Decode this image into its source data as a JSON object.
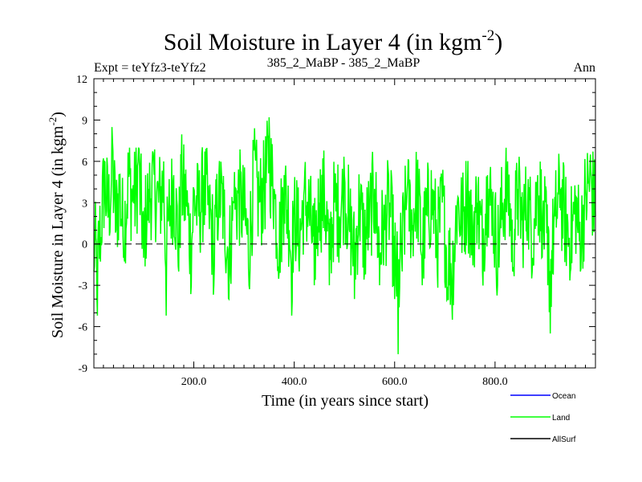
{
  "chart_data": {
    "type": "line",
    "title": "Soil Moisture in Layer 4 (in kgm",
    "title_sup": "-2",
    "title_end": ")",
    "subtitle_left": "Expt = teYfz3-teYfz2",
    "subtitle_center": "385_2_MaBP - 385_2_MaBP",
    "subtitle_right": "Ann",
    "xlabel": "Time (in years since start)",
    "ylabel": "Soil Moisture in Layer 4 (in kgm",
    "ylabel_sup": "-2",
    "ylabel_end": ")",
    "xlim": [
      1,
      1000
    ],
    "ylim": [
      -9,
      12
    ],
    "x_ticks": [
      200,
      400,
      600,
      800
    ],
    "x_tick_labels": [
      "200.0",
      "400.0",
      "600.0",
      "800.0"
    ],
    "y_ticks": [
      -9,
      -6,
      -3,
      0,
      3,
      6,
      9,
      12
    ],
    "y_tick_labels": [
      "-9",
      "-6",
      "-3",
      "0",
      "3",
      "6",
      "9",
      "12"
    ],
    "zero_line": 0,
    "series": [
      {
        "name": "Ocean",
        "color": "#0000ff",
        "values": []
      },
      {
        "name": "Land",
        "color": "#00ff00",
        "n_points": 1000,
        "description_values": "annual anomaly series, mean approx 1.5, range approx -8 to 9.2",
        "anchors": [
          [
            1,
            -2
          ],
          [
            8,
            -5.2
          ],
          [
            15,
            0.5
          ],
          [
            22,
            6
          ],
          [
            30,
            2
          ],
          [
            38,
            7.5
          ],
          [
            45,
            1
          ],
          [
            52,
            5
          ],
          [
            60,
            -1
          ],
          [
            70,
            6.5
          ],
          [
            80,
            3
          ],
          [
            90,
            7
          ],
          [
            100,
            -1
          ],
          [
            110,
            4
          ],
          [
            120,
            6
          ],
          [
            130,
            3
          ],
          [
            140,
            6
          ],
          [
            145,
            -5.2
          ],
          [
            150,
            2
          ],
          [
            160,
            5
          ],
          [
            170,
            -2
          ],
          [
            175,
            6
          ],
          [
            185,
            3
          ],
          [
            195,
            -3
          ],
          [
            200,
            4
          ],
          [
            210,
            2
          ],
          [
            220,
            5
          ],
          [
            230,
            3
          ],
          [
            240,
            -3
          ],
          [
            250,
            5
          ],
          [
            260,
            2
          ],
          [
            270,
            -4
          ],
          [
            280,
            3
          ],
          [
            290,
            4
          ],
          [
            300,
            2
          ],
          [
            310,
            -3
          ],
          [
            320,
            7
          ],
          [
            330,
            3
          ],
          [
            340,
            5
          ],
          [
            350,
            9.2
          ],
          [
            360,
            4
          ],
          [
            370,
            -2
          ],
          [
            380,
            5
          ],
          [
            390,
            1
          ],
          [
            395,
            -5.2
          ],
          [
            400,
            3
          ],
          [
            410,
            -2
          ],
          [
            420,
            4
          ],
          [
            430,
            2
          ],
          [
            440,
            -3
          ],
          [
            450,
            3
          ],
          [
            460,
            4
          ],
          [
            470,
            -3
          ],
          [
            480,
            3
          ],
          [
            490,
            2
          ],
          [
            500,
            5
          ],
          [
            510,
            1
          ],
          [
            520,
            -4
          ],
          [
            530,
            3
          ],
          [
            540,
            -2
          ],
          [
            550,
            2
          ],
          [
            560,
            4
          ],
          [
            570,
            -3
          ],
          [
            580,
            1
          ],
          [
            590,
            3
          ],
          [
            600,
            -4
          ],
          [
            607,
            -8
          ],
          [
            615,
            -2
          ],
          [
            625,
            4
          ],
          [
            635,
            1
          ],
          [
            645,
            5
          ],
          [
            655,
            -3
          ],
          [
            665,
            2
          ],
          [
            675,
            4
          ],
          [
            685,
            -2
          ],
          [
            695,
            3
          ],
          [
            705,
            -4
          ],
          [
            715,
            -5.5
          ],
          [
            725,
            3
          ],
          [
            735,
            1
          ],
          [
            745,
            4
          ],
          [
            755,
            0
          ],
          [
            765,
            3
          ],
          [
            775,
            -2
          ],
          [
            785,
            5
          ],
          [
            795,
            2
          ],
          [
            805,
            -3
          ],
          [
            815,
            3
          ],
          [
            825,
            6
          ],
          [
            835,
            -2
          ],
          [
            845,
            4
          ],
          [
            855,
            1
          ],
          [
            865,
            3
          ],
          [
            875,
            -1
          ],
          [
            885,
            5
          ],
          [
            895,
            2
          ],
          [
            905,
            -3
          ],
          [
            910,
            -6.5
          ],
          [
            920,
            2
          ],
          [
            930,
            4
          ],
          [
            940,
            1
          ],
          [
            950,
            -2
          ],
          [
            960,
            3
          ],
          [
            970,
            -2
          ],
          [
            980,
            4
          ],
          [
            990,
            6.5
          ],
          [
            1000,
            2
          ]
        ]
      },
      {
        "name": "AllSurf",
        "color": "#000000",
        "values": []
      }
    ],
    "legend": [
      {
        "label": "Ocean",
        "color": "#0000ff"
      },
      {
        "label": "Land",
        "color": "#00ff00"
      },
      {
        "label": "AllSurf",
        "color": "#000000"
      }
    ],
    "legend_position": "bottom-right",
    "grid": false
  }
}
